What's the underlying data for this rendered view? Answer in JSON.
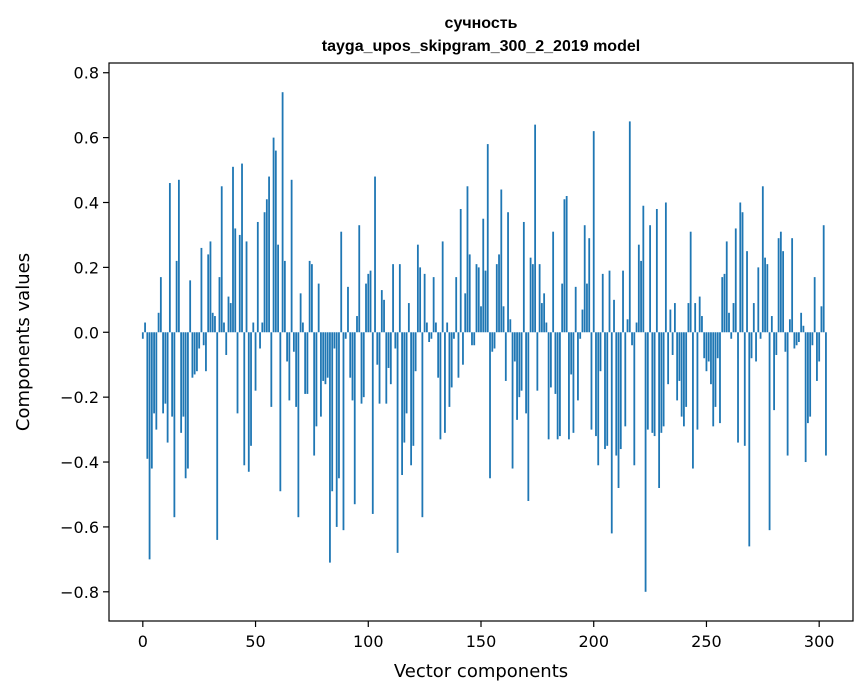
{
  "chart_data": {
    "type": "bar",
    "title_line1": "сучность",
    "title_line2": "tayga_upos_skipgram_300_2_2019 model",
    "xlabel": "Vector components",
    "ylabel": "Components values",
    "xlim": [
      -15,
      315
    ],
    "ylim": [
      -0.89,
      0.83
    ],
    "xticks": [
      0,
      50,
      100,
      150,
      200,
      250,
      300
    ],
    "xtick_labels": [
      "0",
      "50",
      "100",
      "150",
      "200",
      "250",
      "300"
    ],
    "yticks": [
      -0.8,
      -0.6,
      -0.4,
      -0.2,
      0.0,
      0.2,
      0.4,
      0.6,
      0.8
    ],
    "ytick_labels": [
      "−0.8",
      "−0.6",
      "−0.4",
      "−0.2",
      "0.0",
      "0.2",
      "0.4",
      "0.6",
      "0.8"
    ],
    "bar_color": "#1f77b4",
    "values": [
      -0.02,
      0.03,
      -0.39,
      -0.7,
      -0.42,
      -0.25,
      -0.3,
      0.06,
      0.17,
      -0.25,
      -0.22,
      -0.34,
      0.46,
      -0.26,
      -0.57,
      0.22,
      0.47,
      -0.31,
      -0.26,
      -0.45,
      -0.42,
      0.16,
      -0.14,
      -0.13,
      -0.12,
      -0.05,
      0.26,
      -0.04,
      -0.12,
      0.24,
      0.28,
      0.06,
      0.05,
      -0.64,
      0.17,
      0.45,
      0.03,
      -0.07,
      0.11,
      0.09,
      0.51,
      0.32,
      -0.25,
      0.3,
      0.52,
      -0.41,
      0.28,
      -0.43,
      -0.35,
      0.03,
      -0.18,
      0.34,
      -0.05,
      0.03,
      0.37,
      0.41,
      0.48,
      -0.23,
      0.6,
      0.56,
      0.27,
      -0.49,
      0.74,
      0.22,
      -0.09,
      -0.21,
      0.47,
      -0.06,
      -0.23,
      -0.57,
      0.12,
      0.03,
      -0.19,
      -0.19,
      0.22,
      0.21,
      -0.38,
      -0.29,
      0.15,
      -0.26,
      -0.15,
      -0.16,
      -0.14,
      -0.71,
      -0.49,
      -0.05,
      -0.6,
      -0.45,
      0.31,
      -0.61,
      -0.02,
      0.14,
      -0.14,
      -0.21,
      -0.53,
      0.05,
      0.33,
      -0.22,
      -0.2,
      0.15,
      0.18,
      0.19,
      -0.56,
      0.48,
      -0.1,
      -0.22,
      0.13,
      0.1,
      -0.22,
      -0.11,
      -0.16,
      0.21,
      -0.05,
      -0.68,
      0.21,
      -0.44,
      -0.34,
      -0.25,
      0.09,
      -0.41,
      -0.35,
      -0.12,
      0.27,
      0.2,
      -0.57,
      0.18,
      0.03,
      -0.03,
      -0.02,
      0.17,
      0.03,
      -0.14,
      -0.33,
      0.28,
      -0.31,
      0.03,
      -0.23,
      -0.17,
      -0.02,
      0.17,
      -0.14,
      0.38,
      -0.1,
      0.12,
      0.45,
      0.24,
      -0.04,
      -0.04,
      0.21,
      0.2,
      0.08,
      0.35,
      0.19,
      0.58,
      -0.45,
      -0.06,
      -0.05,
      0.21,
      0.24,
      0.44,
      0.08,
      -0.15,
      0.37,
      0.04,
      -0.42,
      -0.09,
      -0.27,
      -0.2,
      -0.18,
      0.34,
      -0.25,
      -0.52,
      0.23,
      0.21,
      0.64,
      -0.18,
      0.21,
      0.09,
      0.12,
      0.03,
      -0.33,
      -0.17,
      0.31,
      -0.19,
      -0.33,
      -0.32,
      0.15,
      0.41,
      0.42,
      -0.33,
      -0.13,
      -0.31,
      0.14,
      -0.21,
      -0.02,
      0.07,
      0.33,
      0.15,
      0.29,
      -0.3,
      0.62,
      -0.32,
      -0.41,
      -0.12,
      0.18,
      -0.36,
      -0.35,
      0.19,
      -0.62,
      0.1,
      -0.38,
      -0.48,
      -0.36,
      0.19,
      -0.29,
      0.04,
      0.65,
      -0.04,
      -0.41,
      0.03,
      0.27,
      0.22,
      0.39,
      -0.8,
      -0.3,
      0.33,
      -0.31,
      -0.32,
      0.38,
      -0.48,
      -0.31,
      -0.29,
      0.4,
      -0.16,
      0.07,
      -0.07,
      0.09,
      -0.21,
      -0.15,
      -0.26,
      -0.29,
      -0.23,
      0.09,
      0.31,
      -0.42,
      0.09,
      -0.3,
      0.11,
      0.05,
      -0.08,
      -0.12,
      -0.09,
      -0.16,
      -0.29,
      -0.23,
      -0.08,
      -0.28,
      0.17,
      0.18,
      0.28,
      0.06,
      -0.02,
      0.09,
      0.32,
      -0.34,
      0.4,
      0.37,
      -0.35,
      0.25,
      -0.66,
      -0.08,
      0.09,
      -0.09,
      0.2,
      -0.02,
      0.45,
      0.23,
      0.21,
      -0.61,
      0.05,
      -0.24,
      -0.07,
      0.29,
      0.31,
      0.25,
      -0.06,
      -0.38,
      0.04,
      0.29,
      -0.05,
      -0.04,
      -0.03,
      0.06,
      0.02,
      -0.4,
      -0.28,
      -0.26,
      -0.04,
      0.17,
      -0.15,
      -0.09,
      0.08,
      0.33,
      -0.38
    ]
  }
}
